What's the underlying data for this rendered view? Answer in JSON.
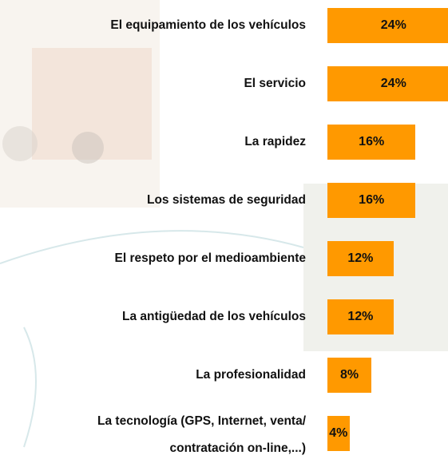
{
  "chart_data": {
    "type": "bar",
    "orientation": "horizontal",
    "color": "#ff9900",
    "categories": [
      "El equipamiento de los vehículos",
      "El servicio",
      "La rapidez",
      "Los sistemas de seguridad",
      "El respeto por el medioambiente",
      "La antigüedad de los vehículos",
      "La profesionalidad",
      "La tecnología (GPS, Internet, venta/\ncontratación on-line,...)"
    ],
    "values": [
      24,
      24,
      16,
      16,
      12,
      12,
      8,
      4
    ],
    "value_labels": [
      "24%",
      "24%",
      "16%",
      "16%",
      "12%",
      "12%",
      "8%",
      "4%"
    ]
  }
}
